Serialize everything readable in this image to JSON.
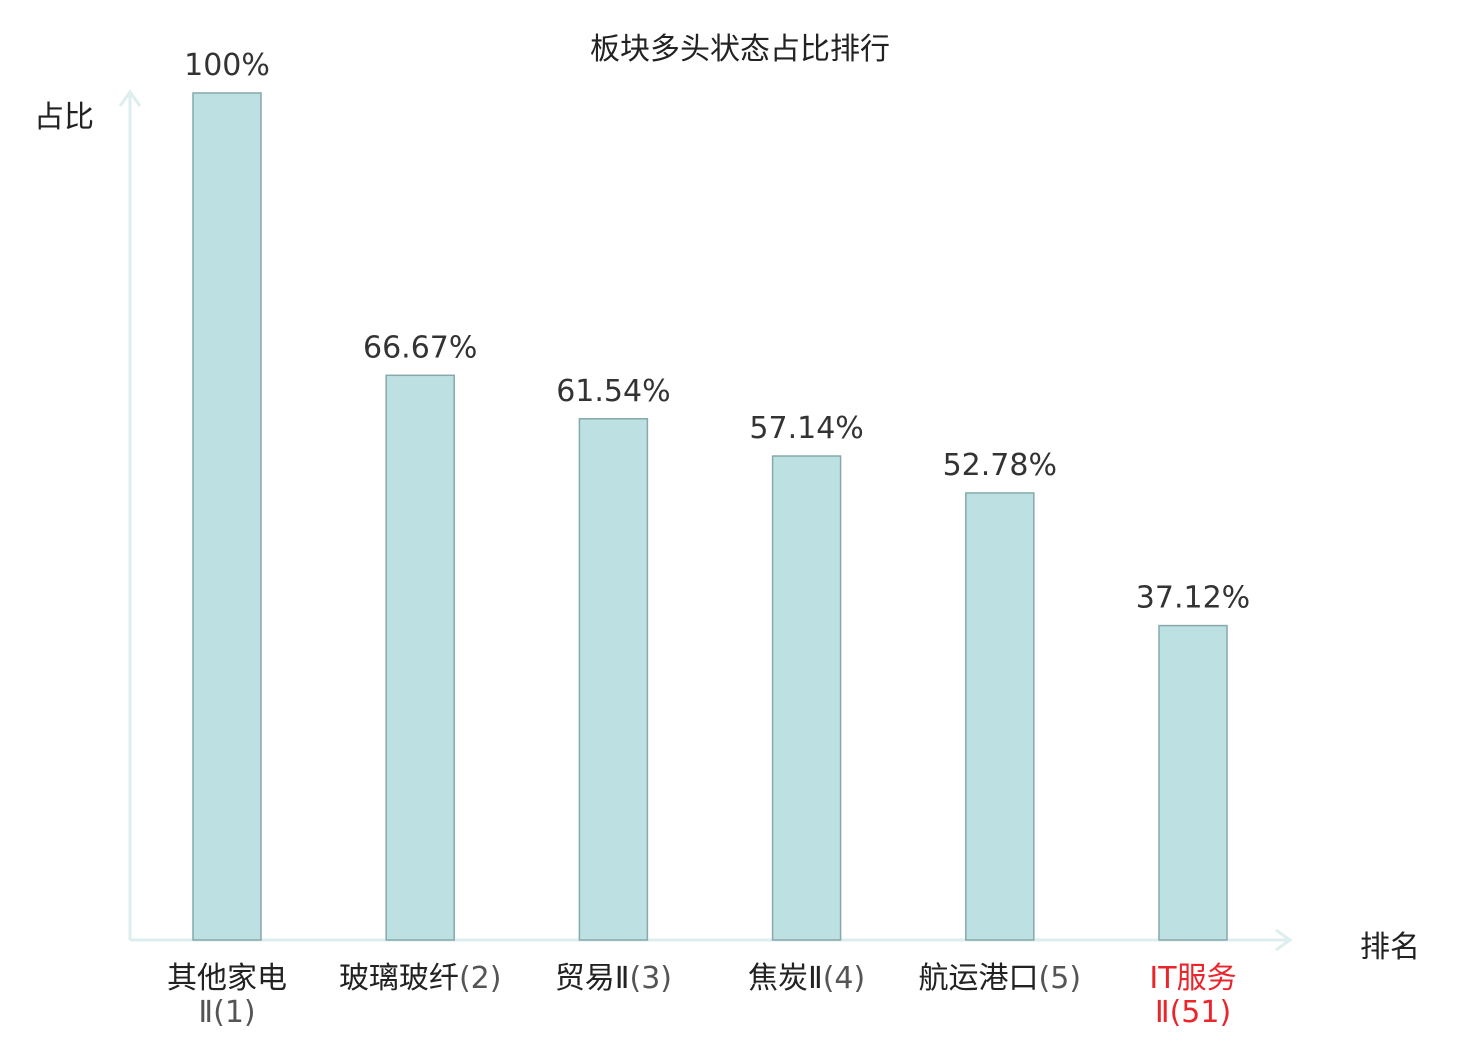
{
  "chart_data": {
    "type": "bar",
    "title": "板块多头状态占比排行",
    "ylabel": "占比",
    "xlabel": "排名",
    "ylim": [
      0,
      100
    ],
    "grid": false,
    "categories": [
      {
        "name": "其他家电",
        "rank": "Ⅱ(1)"
      },
      {
        "name": "玻璃玻纤",
        "rank": "(2)"
      },
      {
        "name": "贸易Ⅱ",
        "rank": "(3)"
      },
      {
        "name": "焦炭Ⅱ",
        "rank": "(4)"
      },
      {
        "name": "航运港口",
        "rank": "(5)"
      },
      {
        "name": "IT服务",
        "rank": "Ⅱ(51)"
      }
    ],
    "values": [
      100,
      66.67,
      61.54,
      57.14,
      52.78,
      37.12
    ],
    "value_labels": [
      "100%",
      "66.67%",
      "61.54%",
      "57.14%",
      "52.78%",
      "37.12%"
    ],
    "highlight_index": 5,
    "colors": {
      "bar_fill": "#bde0e3",
      "bar_stroke": "#86a9ab",
      "axis": "#dcefee",
      "highlight": "#e8262c"
    }
  }
}
